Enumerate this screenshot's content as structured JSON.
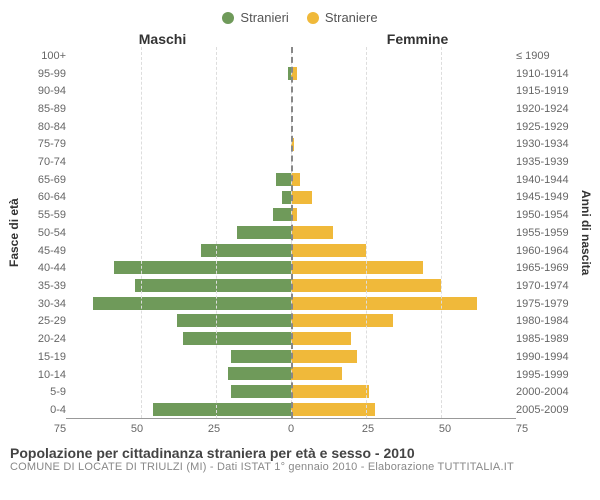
{
  "legend": {
    "male": {
      "label": "Stranieri",
      "color": "#6f9a5a"
    },
    "female": {
      "label": "Straniere",
      "color": "#f0b93a"
    }
  },
  "headers": {
    "male": "Maschi",
    "female": "Femmine"
  },
  "axis_labels": {
    "left": "Fasce di età",
    "right": "Anni di nascita"
  },
  "title": "Popolazione per cittadinanza straniera per età e sesso - 2010",
  "subtitle": "COMUNE DI LOCATE DI TRIULZI (MI) - Dati ISTAT 1° gennaio 2010 - Elaborazione TUTTITALIA.IT",
  "chart": {
    "type": "population-pyramid",
    "x_max": 75,
    "x_ticks": [
      75,
      50,
      25,
      0,
      25,
      50,
      75
    ],
    "background_color": "#ffffff",
    "grid_color": "#dddddd",
    "centerline_color": "#888888",
    "rows": [
      {
        "age": "100+",
        "birth": "≤ 1909",
        "m": 0,
        "f": 0
      },
      {
        "age": "95-99",
        "birth": "1910-1914",
        "m": 1,
        "f": 2
      },
      {
        "age": "90-94",
        "birth": "1915-1919",
        "m": 0,
        "f": 0
      },
      {
        "age": "85-89",
        "birth": "1920-1924",
        "m": 0,
        "f": 0
      },
      {
        "age": "80-84",
        "birth": "1925-1929",
        "m": 0,
        "f": 0
      },
      {
        "age": "75-79",
        "birth": "1930-1934",
        "m": 0,
        "f": 1
      },
      {
        "age": "70-74",
        "birth": "1935-1939",
        "m": 0,
        "f": 0
      },
      {
        "age": "65-69",
        "birth": "1940-1944",
        "m": 5,
        "f": 3
      },
      {
        "age": "60-64",
        "birth": "1945-1949",
        "m": 3,
        "f": 7
      },
      {
        "age": "55-59",
        "birth": "1950-1954",
        "m": 6,
        "f": 2
      },
      {
        "age": "50-54",
        "birth": "1955-1959",
        "m": 18,
        "f": 14
      },
      {
        "age": "45-49",
        "birth": "1960-1964",
        "m": 30,
        "f": 25
      },
      {
        "age": "40-44",
        "birth": "1965-1969",
        "m": 59,
        "f": 44
      },
      {
        "age": "35-39",
        "birth": "1970-1974",
        "m": 52,
        "f": 50
      },
      {
        "age": "30-34",
        "birth": "1975-1979",
        "m": 66,
        "f": 62
      },
      {
        "age": "25-29",
        "birth": "1980-1984",
        "m": 38,
        "f": 34
      },
      {
        "age": "20-24",
        "birth": "1985-1989",
        "m": 36,
        "f": 20
      },
      {
        "age": "15-19",
        "birth": "1990-1994",
        "m": 20,
        "f": 22
      },
      {
        "age": "10-14",
        "birth": "1995-1999",
        "m": 21,
        "f": 17
      },
      {
        "age": "5-9",
        "birth": "2000-2004",
        "m": 20,
        "f": 26
      },
      {
        "age": "0-4",
        "birth": "2005-2009",
        "m": 46,
        "f": 28
      }
    ]
  }
}
